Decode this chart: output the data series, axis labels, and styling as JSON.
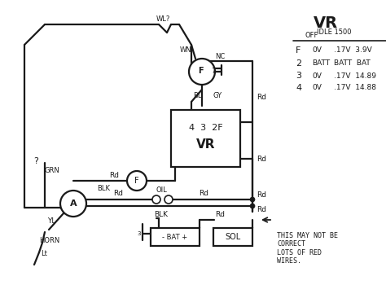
{
  "bg_color": "#ffffff",
  "line_color": "#1a1a1a",
  "line_width": 1.6,
  "vr_table": {
    "title": "VR",
    "col_headers": [
      "OFF",
      "IDLE 1500"
    ],
    "rows": [
      [
        "F",
        "0V",
        ".17V  3.9V"
      ],
      [
        "2",
        "BATT",
        "BATT  BAT"
      ],
      [
        "3",
        "0V",
        ".17V  14.89"
      ],
      [
        "4",
        "0V",
        ".17V  14.88"
      ]
    ]
  }
}
